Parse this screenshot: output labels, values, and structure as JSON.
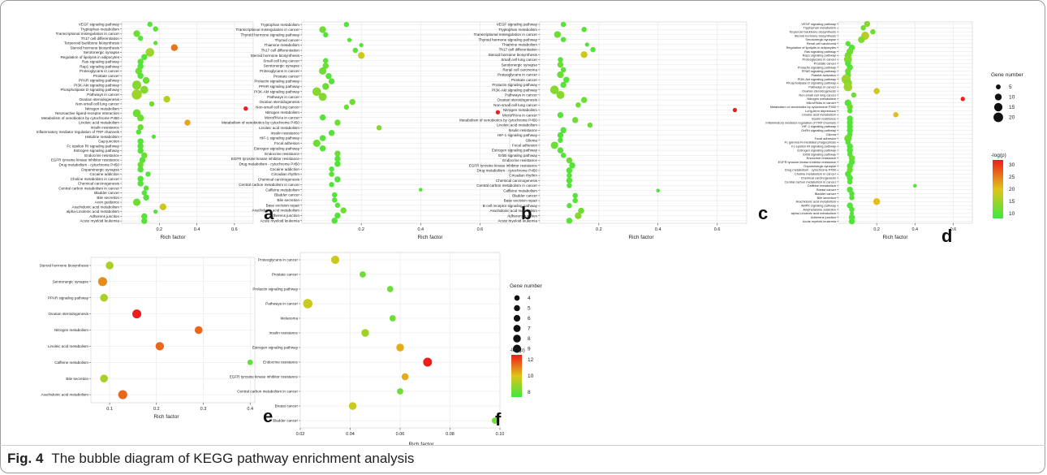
{
  "caption": {
    "label": "Fig. 4",
    "text": "The bubble diagram of KEGG pathway enrichment analysis"
  },
  "chart_data": [
    {
      "type": "scatter",
      "panel": "a",
      "xlabel": "Rich factor",
      "ylabel": "",
      "xlim": [
        0,
        0.7
      ],
      "xticks": [
        0.2,
        0.4,
        0.6
      ],
      "xtick_labels": [
        "0.2",
        "0.4",
        "0.6"
      ],
      "size_by": "Gene number",
      "color_by": "-log(p)",
      "grid": true,
      "categories": [
        "VEGF signaling pathway",
        "Tryptophan metabolism",
        "Transcriptional misregulation in cancer",
        "Th17 cell differentiation",
        "Terpenoid backbone biosynthesis",
        "Steroid hormone biosynthesis",
        "Serotonergic synapse",
        "Regulation of lipolysis in adipocytes",
        "Ras signaling pathway",
        "Rap1 signaling pathway",
        "Proteoglycans in cancer",
        "Prostate cancer",
        "PPAR signaling pathway",
        "PI3K-Akt signaling pathway",
        "Phospholipase D signaling pathway",
        "Pathways in cancer",
        "Ovarian steroidogenesis",
        "Non-small cell lung cancer",
        "Nitrogen metabolism",
        "Neuroactive ligand-receptor interaction",
        "Metabolism of xenobiotics by cytochrome P450",
        "Linoleic acid metabolism",
        "Insulin resistance",
        "Inflammatory mediator regulation of TRP channels",
        "Histidine metabolism",
        "Gap junction",
        "Fc epsilon RI signaling pathway",
        "Estrogen signaling pathway",
        "Endocrine resistance",
        "EGFR tyrosine kinase inhibitor resistance",
        "Drug metabolism - cytochrome P450",
        "Dopaminergic synapse",
        "Cocaine addiction",
        "Choline metabolism in cancer",
        "Chemical carcinogenesis",
        "Central carbon metabolism in cancer",
        "Bladder cancer",
        "Bile secretion",
        "Axon guidance",
        "Arachidonic acid metabolism",
        "alpha-Linolenic acid metabolism",
        "Adherens junction",
        "Acute myeloid leukemia"
      ],
      "x": [
        0.15,
        0.18,
        0.08,
        0.1,
        0.18,
        0.28,
        0.15,
        0.12,
        0.1,
        0.1,
        0.09,
        0.1,
        0.13,
        0.08,
        0.12,
        0.08,
        0.24,
        0.16,
        0.66,
        0.08,
        0.1,
        0.35,
        0.1,
        0.09,
        0.17,
        0.1,
        0.1,
        0.1,
        0.12,
        0.11,
        0.1,
        0.1,
        0.14,
        0.1,
        0.1,
        0.13,
        0.12,
        0.13,
        0.08,
        0.22,
        0.18,
        0.12,
        0.12
      ],
      "size": [
        6,
        6,
        10,
        6,
        4,
        10,
        16,
        8,
        8,
        8,
        10,
        8,
        10,
        18,
        14,
        22,
        10,
        6,
        4,
        14,
        10,
        8,
        8,
        6,
        4,
        8,
        8,
        8,
        8,
        8,
        8,
        8,
        6,
        8,
        8,
        6,
        6,
        8,
        12,
        10,
        4,
        8,
        8
      ],
      "neglogp": [
        10,
        10,
        12,
        10,
        10,
        28,
        16,
        10,
        10,
        10,
        12,
        10,
        12,
        14,
        14,
        16,
        18,
        12,
        35,
        12,
        12,
        24,
        12,
        10,
        10,
        10,
        10,
        10,
        12,
        10,
        12,
        10,
        10,
        10,
        10,
        10,
        10,
        10,
        12,
        20,
        10,
        10,
        10
      ]
    },
    {
      "type": "scatter",
      "panel": "b",
      "xlabel": "Rich factor",
      "ylabel": "",
      "xlim": [
        0,
        0.7
      ],
      "xticks": [
        0.2,
        0.4,
        0.6
      ],
      "xtick_labels": [
        "0.2",
        "0.4",
        "0.6"
      ],
      "size_by": "Gene number",
      "color_by": "-log(p)",
      "grid": true,
      "categories": [
        "Tryptophan metabolism",
        "Transcriptional misregulation in cancer",
        "Thyroid hormone signaling pathway",
        "Thyroid cancer",
        "Thiamine metabolism",
        "Th17 cell differentiation",
        "Steroid hormone biosynthesis",
        "Small cell lung cancer",
        "Serotonergic synapse",
        "Proteoglycans in cancer",
        "Prostate cancer",
        "Prolactin signaling pathway",
        "PPAR signaling pathway",
        "PI3K-Akt signaling pathway",
        "Pathways in cancer",
        "Ovarian steroidogenesis",
        "Non-small cell lung cancer",
        "Nitrogen metabolism",
        "MicroRNAs in cancer",
        "Metabolism of xenobiotics by cytochrome P450",
        "Linoleic acid metabolism",
        "Insulin resistance",
        "HIF-1 signaling pathway",
        "Focal adhesion",
        "Estrogen signaling pathway",
        "Endocrine resistance",
        "EGFR tyrosine kinase inhibitor resistance",
        "Drug metabolism - cytochrome P450",
        "Cocaine addiction",
        "Circadian rhythm",
        "Chemical carcinogenesis",
        "Central carbon metabolism in cancer",
        "Caffeine metabolism",
        "Bladder cancer",
        "Bile secretion",
        "Base excision repair",
        "Arachidonic acid metabolism",
        "Adherens junction",
        "Acute myeloid leukemia"
      ],
      "x": [
        0.15,
        0.07,
        0.08,
        0.16,
        0.2,
        0.18,
        0.2,
        0.08,
        0.08,
        0.07,
        0.09,
        0.1,
        0.08,
        0.05,
        0.07,
        0.17,
        0.15,
        0.66,
        0.07,
        0.12,
        0.26,
        0.1,
        0.07,
        0.05,
        0.07,
        0.12,
        0.12,
        0.12,
        0.1,
        0.1,
        0.12,
        0.1,
        0.4,
        0.11,
        0.11,
        0.12,
        0.14,
        0.12,
        0.11
      ],
      "size": [
        6,
        10,
        6,
        4,
        4,
        6,
        10,
        6,
        8,
        12,
        8,
        8,
        10,
        16,
        14,
        8,
        6,
        4,
        8,
        8,
        6,
        8,
        8,
        12,
        8,
        8,
        8,
        8,
        6,
        6,
        8,
        6,
        3,
        6,
        6,
        6,
        8,
        8,
        8
      ],
      "neglogp": [
        10,
        12,
        10,
        10,
        10,
        10,
        20,
        10,
        12,
        12,
        10,
        10,
        12,
        14,
        14,
        12,
        12,
        35,
        10,
        12,
        14,
        10,
        10,
        12,
        10,
        12,
        10,
        10,
        10,
        10,
        10,
        10,
        10,
        10,
        10,
        10,
        12,
        10,
        10
      ]
    },
    {
      "type": "scatter",
      "panel": "c",
      "xlabel": "Rich factor",
      "ylabel": "",
      "xlim": [
        0,
        0.7
      ],
      "xticks": [
        0.2,
        0.4,
        0.6
      ],
      "xtick_labels": [
        "0.2",
        "0.4",
        "0.6"
      ],
      "size_by": "Gene number",
      "color_by": "-log(p)",
      "grid": true,
      "categories": [
        "VEGF signaling pathway",
        "Tryptophan metabolism",
        "Transcriptional misregulation in cancer",
        "Thyroid hormone signaling pathway",
        "Thiamine metabolism",
        "Th17 cell differentiation",
        "Steroid hormone biosynthesis",
        "Small cell lung cancer",
        "Serotonergic synapse",
        "Renal cell carcinoma",
        "Proteoglycans in cancer",
        "Prostate cancer",
        "Prolactin signaling pathway",
        "PI3K-Akt signaling pathway",
        "Pathways in cancer",
        "Ovarian steroidogenesis",
        "Non-small cell lung cancer",
        "Nitrogen metabolism",
        "MicroRNAs in cancer",
        "Metabolism of xenobiotics by cytochrome P450",
        "Linoleic acid metabolism",
        "Insulin resistance",
        "HIF-1 signaling pathway",
        "Glioma",
        "Focal adhesion",
        "Estrogen signaling pathway",
        "ErbB signaling pathway",
        "Endocrine resistance",
        "EGFR tyrosine kinase inhibitor resistance",
        "Drug metabolism - cytochrome P450",
        "Circadian rhythm",
        "Chemical carcinogenesis",
        "Central carbon metabolism in cancer",
        "Caffeine metabolism",
        "Bladder cancer",
        "Base excision repair",
        "B cell receptor signaling pathway",
        "Arachidonic acid metabolism",
        "Adherens junction",
        "Acute myeloid leukemia"
      ],
      "x": [
        0.08,
        0.15,
        0.06,
        0.08,
        0.16,
        0.18,
        0.15,
        0.07,
        0.07,
        0.08,
        0.07,
        0.09,
        0.08,
        0.05,
        0.07,
        0.15,
        0.13,
        0.66,
        0.07,
        0.12,
        0.17,
        0.08,
        0.07,
        0.07,
        0.05,
        0.07,
        0.08,
        0.1,
        0.11,
        0.1,
        0.1,
        0.1,
        0.1,
        0.4,
        0.12,
        0.12,
        0.1,
        0.14,
        0.13,
        0.1
      ],
      "size": [
        6,
        6,
        10,
        6,
        4,
        6,
        10,
        6,
        8,
        6,
        10,
        8,
        8,
        16,
        14,
        8,
        6,
        4,
        8,
        8,
        6,
        8,
        8,
        6,
        12,
        8,
        6,
        8,
        8,
        8,
        6,
        8,
        6,
        3,
        6,
        6,
        6,
        8,
        10,
        8
      ],
      "neglogp": [
        10,
        10,
        12,
        10,
        10,
        10,
        20,
        10,
        12,
        10,
        12,
        10,
        10,
        14,
        14,
        12,
        12,
        35,
        10,
        12,
        12,
        10,
        10,
        10,
        12,
        10,
        10,
        12,
        10,
        10,
        10,
        10,
        10,
        10,
        10,
        10,
        10,
        12,
        14,
        10
      ]
    },
    {
      "type": "scatter",
      "panel": "d",
      "xlabel": "Rich factor",
      "ylabel": "",
      "xlim": [
        0,
        0.7
      ],
      "xticks": [
        0.2,
        0.4,
        0.6
      ],
      "xtick_labels": [
        "0.2",
        "0.4",
        "0.6"
      ],
      "size_by": "Gene number",
      "color_by": "-log(p)",
      "grid": true,
      "categories": [
        "VEGF signaling pathway",
        "Tryptophan metabolism",
        "Terpenoid backbone biosynthesis",
        "Steroid hormone biosynthesis",
        "Serotonergic synapse",
        "Renal cell carcinoma",
        "Regulation of lipolysis in adipocytes",
        "Ras signaling pathway",
        "Rap1 signaling pathway",
        "Proteoglycans in cancer",
        "Prostate cancer",
        "Prolactin signaling pathway",
        "PPAR signaling pathway",
        "Platelet activation",
        "PI3K-Akt signaling pathway",
        "Phospholipase D signaling pathway",
        "Pathways in cancer",
        "Ovarian steroidogenesis",
        "Non-small cell lung cancer",
        "Nitrogen metabolism",
        "MicroRNAs in cancer",
        "Metabolism of xenobiotics by cytochrome P450",
        "Long-term depression",
        "Linoleic acid metabolism",
        "Insulin resistance",
        "Inflammatory mediator regulation of TRP channels",
        "HIF-1 signaling pathway",
        "GnRH signaling pathway",
        "Glioma",
        "Focal adhesion",
        "Fc gamma R-mediated phagocytosis",
        "Fc epsilon RI signaling pathway",
        "Estrogen signaling pathway",
        "ErbB signaling pathway",
        "Endocrine resistance",
        "EGFR tyrosine kinase inhibitor resistance",
        "Dopaminergic synapse",
        "Drug metabolism - cytochrome P450",
        "Choline metabolism in cancer",
        "Chemical carcinogenesis",
        "Central carbon metabolism in cancer",
        "Caffeine metabolism",
        "Breast cancer",
        "Bladder cancer",
        "Bile secretion",
        "Arachidonic acid metabolism",
        "AMPK signaling pathway",
        "Amphetamine addiction",
        "alpha-Linolenic acid metabolism",
        "Adherens junction",
        "Acute myeloid leukemia"
      ],
      "x": [
        0.15,
        0.13,
        0.18,
        0.14,
        0.12,
        0.05,
        0.07,
        0.06,
        0.05,
        0.05,
        0.05,
        0.06,
        0.05,
        0.05,
        0.04,
        0.05,
        0.05,
        0.2,
        0.08,
        0.65,
        0.05,
        0.06,
        0.06,
        0.3,
        0.06,
        0.06,
        0.06,
        0.06,
        0.06,
        0.05,
        0.05,
        0.06,
        0.06,
        0.06,
        0.07,
        0.07,
        0.06,
        0.06,
        0.05,
        0.06,
        0.06,
        0.4,
        0.06,
        0.07,
        0.07,
        0.2,
        0.06,
        0.07,
        0.07,
        0.07,
        0.07
      ],
      "size": [
        8,
        6,
        6,
        14,
        10,
        6,
        8,
        10,
        10,
        14,
        8,
        8,
        8,
        8,
        18,
        14,
        16,
        8,
        6,
        4,
        10,
        8,
        6,
        6,
        8,
        8,
        8,
        8,
        6,
        12,
        6,
        8,
        8,
        6,
        8,
        8,
        8,
        8,
        8,
        8,
        6,
        3,
        8,
        6,
        6,
        10,
        8,
        6,
        4,
        8,
        8
      ],
      "neglogp": [
        14,
        12,
        12,
        18,
        14,
        10,
        10,
        12,
        12,
        14,
        10,
        10,
        12,
        10,
        16,
        14,
        16,
        20,
        12,
        35,
        10,
        12,
        10,
        22,
        10,
        10,
        10,
        10,
        10,
        12,
        10,
        10,
        10,
        10,
        12,
        10,
        10,
        12,
        10,
        10,
        10,
        10,
        10,
        10,
        10,
        22,
        10,
        10,
        10,
        10,
        10
      ]
    },
    {
      "type": "scatter",
      "panel": "e",
      "xlabel": "Rich factor",
      "ylabel": "",
      "xlim": [
        0.06,
        0.41
      ],
      "xticks": [
        0.1,
        0.2,
        0.3,
        0.4
      ],
      "xtick_labels": [
        "0.1",
        "0.2",
        "0.3",
        "0.4"
      ],
      "size_by": "Gene number",
      "color_by": "-log(p)",
      "grid": true,
      "categories": [
        "Steroid hormone biosynthesis",
        "Serotonergic synapse",
        "PPAR signaling pathway",
        "Ovarian steroidogenesis",
        "Nitrogen metabolism",
        "Linoleic acid metabolism",
        "Caffeine metabolism",
        "Bile secretion",
        "Arachidonic acid metabolism"
      ],
      "x": [
        0.1,
        0.085,
        0.088,
        0.158,
        0.29,
        0.207,
        0.4,
        0.088,
        0.128
      ],
      "size": [
        6,
        8,
        6,
        8,
        6,
        7,
        3,
        6,
        8
      ],
      "neglogp": [
        8,
        11,
        8,
        14,
        12,
        12,
        6,
        8,
        12
      ]
    },
    {
      "type": "scatter",
      "panel": "f",
      "xlabel": "Rich factor",
      "ylabel": "",
      "xlim": [
        0.02,
        0.1
      ],
      "xticks": [
        0.02,
        0.04,
        0.06,
        0.08,
        0.1
      ],
      "xtick_labels": [
        "0.02",
        "0.04",
        "0.06",
        "0.08",
        "0.10"
      ],
      "size_by": "Gene number",
      "color_by": "-log(p)",
      "grid": true,
      "categories": [
        "Proteoglycans in cancer",
        "Prostate cancer",
        "Prolactin signaling pathway",
        "Pathways in cancer",
        "Melanoma",
        "Insulin resistance",
        "Estrogen signaling pathway",
        "Endocrine resistance",
        "EGFR tyrosine kinase inhibitor resistance",
        "Central carbon metabolism in cancer",
        "Breast cancer",
        "Bladder cancer"
      ],
      "x": [
        0.034,
        0.045,
        0.056,
        0.023,
        0.057,
        0.046,
        0.06,
        0.071,
        0.062,
        0.06,
        0.041,
        0.098
      ],
      "size": [
        7,
        4,
        4,
        9,
        4,
        6,
        6,
        8,
        5,
        4,
        6,
        4
      ],
      "neglogp": [
        9,
        7,
        7,
        9,
        7,
        8,
        10,
        13,
        10,
        7,
        9,
        7
      ]
    }
  ],
  "legends": {
    "size_title": "Gene number",
    "color_title": "-log(p)",
    "d": {
      "size_values": [
        "5",
        "10",
        "15",
        "20"
      ],
      "color_ticks": [
        "30",
        "25",
        "20",
        "15",
        "10"
      ]
    },
    "f": {
      "size_values": [
        "4",
        "5",
        "6",
        "7",
        "8",
        "9"
      ],
      "color_ticks": [
        "12",
        "10",
        "8"
      ]
    }
  },
  "panel_labels": [
    "a",
    "b",
    "c",
    "d",
    "e",
    "f"
  ],
  "colors": {
    "low": "#3ee83e",
    "mid": "#e0c41a",
    "high": "#ee1c1c",
    "grid": "#e3e3e3",
    "frame": "#9a9a9a"
  }
}
